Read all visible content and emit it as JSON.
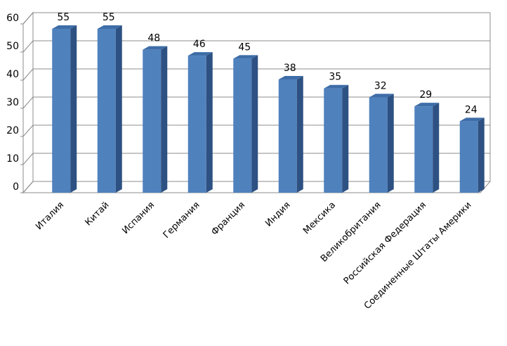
{
  "chart_data": {
    "type": "bar",
    "categories": [
      "Италия",
      "Китай",
      "Испания",
      "Германия",
      "Франция",
      "Индия",
      "Мексика",
      "Великобритания",
      "Российская Федерация",
      "Соединенные  Штаты Америки"
    ],
    "values": [
      55,
      55,
      48,
      46,
      45,
      38,
      35,
      32,
      29,
      24
    ],
    "ylim": [
      0,
      60
    ],
    "yticks": [
      0,
      10,
      20,
      30,
      40,
      50,
      60
    ],
    "grid": true,
    "legend": "none",
    "style": "3d",
    "colors": {
      "bar_front": "#4F81BD",
      "bar_side": "#2D5182",
      "bar_top": "#3E6DA8",
      "grid": "#8C8C8C",
      "wall": "#D9D9D9"
    }
  }
}
